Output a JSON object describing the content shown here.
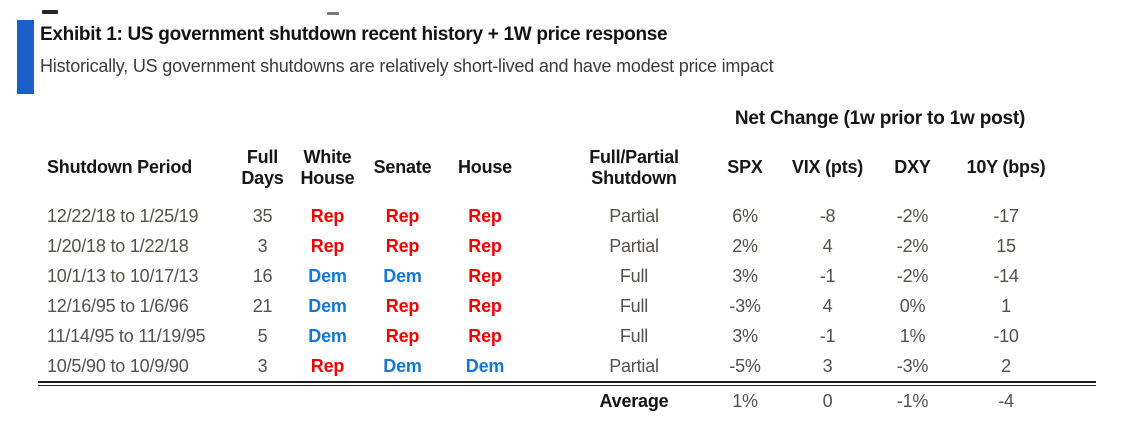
{
  "exhibit": {
    "title": "Exhibit 1: US government shutdown recent history + 1W price response",
    "subtitle": "Historically, US government shutdowns are relatively short-lived and have modest price impact"
  },
  "table": {
    "group_header": "Net Change (1w prior to 1w post)",
    "columns": {
      "period": "Shutdown Period",
      "full_days": "Full\nDays",
      "white_house": "White\nHouse",
      "senate": "Senate",
      "house": "House",
      "type": "Full/Partial\nShutdown",
      "spx": "SPX",
      "vix": "VIX (pts)",
      "dxy": "DXY",
      "y10": "10Y (bps)"
    },
    "rows": [
      {
        "period": "12/22/18 to 1/25/19",
        "full_days": "35",
        "white_house": "Rep",
        "senate": "Rep",
        "house": "Rep",
        "type": "Partial",
        "spx": "6%",
        "vix": "-8",
        "dxy": "-2%",
        "y10": "-17"
      },
      {
        "period": "1/20/18 to 1/22/18",
        "full_days": "3",
        "white_house": "Rep",
        "senate": "Rep",
        "house": "Rep",
        "type": "Partial",
        "spx": "2%",
        "vix": "4",
        "dxy": "-2%",
        "y10": "15"
      },
      {
        "period": "10/1/13 to 10/17/13",
        "full_days": "16",
        "white_house": "Dem",
        "senate": "Dem",
        "house": "Rep",
        "type": "Full",
        "spx": "3%",
        "vix": "-1",
        "dxy": "-2%",
        "y10": "-14"
      },
      {
        "period": "12/16/95 to 1/6/96",
        "full_days": "21",
        "white_house": "Dem",
        "senate": "Rep",
        "house": "Rep",
        "type": "Full",
        "spx": "-3%",
        "vix": "4",
        "dxy": "0%",
        "y10": "1"
      },
      {
        "period": "11/14/95 to 11/19/95",
        "full_days": "5",
        "white_house": "Dem",
        "senate": "Rep",
        "house": "Rep",
        "type": "Full",
        "spx": "3%",
        "vix": "-1",
        "dxy": "1%",
        "y10": "-10"
      },
      {
        "period": "10/5/90 to 10/9/90",
        "full_days": "3",
        "white_house": "Rep",
        "senate": "Dem",
        "house": "Dem",
        "type": "Partial",
        "spx": "-5%",
        "vix": "3",
        "dxy": "-3%",
        "y10": "2"
      }
    ],
    "average": {
      "label": "Average",
      "spx": "1%",
      "vix": "0",
      "dxy": "-1%",
      "y10": "-4"
    }
  },
  "colors": {
    "accent_bar": "#1b5ec8",
    "republican_red": "#f20000",
    "democrat_blue": "#1478d2"
  }
}
